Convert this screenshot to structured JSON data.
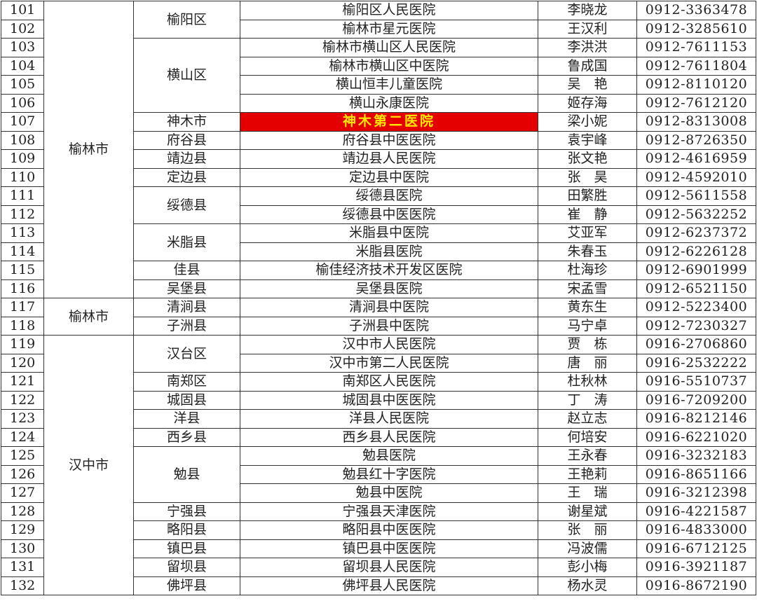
{
  "highlight": {
    "background": "#e40000",
    "text": "#ffe800"
  },
  "cities": [
    {
      "name": "榆林市",
      "rows": 16
    },
    {
      "name": "榆林市",
      "rows": 2
    },
    {
      "name": "汉中市",
      "rows": 14
    }
  ],
  "districts": [
    {
      "name": "榆阳区",
      "rows": 2
    },
    {
      "name": "横山区",
      "rows": 4
    },
    {
      "name": "神木市",
      "rows": 1
    },
    {
      "name": "府谷县",
      "rows": 1
    },
    {
      "name": "靖边县",
      "rows": 1
    },
    {
      "name": "定边县",
      "rows": 1
    },
    {
      "name": "绥德县",
      "rows": 2
    },
    {
      "name": "米脂县",
      "rows": 2
    },
    {
      "name": "佳县",
      "rows": 1
    },
    {
      "name": "吴堡县",
      "rows": 1
    },
    {
      "name": "清涧县",
      "rows": 1
    },
    {
      "name": "子洲县",
      "rows": 1
    },
    {
      "name": "汉台区",
      "rows": 2
    },
    {
      "name": "南郑区",
      "rows": 1
    },
    {
      "name": "城固县",
      "rows": 1
    },
    {
      "name": "洋县",
      "rows": 1
    },
    {
      "name": "西乡县",
      "rows": 1
    },
    {
      "name": "勉县",
      "rows": 3
    },
    {
      "name": "宁强县",
      "rows": 1
    },
    {
      "name": "略阳县",
      "rows": 1
    },
    {
      "name": "镇巴县",
      "rows": 1
    },
    {
      "name": "留坝县",
      "rows": 1
    },
    {
      "name": "佛坪县",
      "rows": 1
    }
  ],
  "rows": [
    {
      "no": "101",
      "hospital": "榆阳区人民医院",
      "contact": "李晓龙",
      "phone": "0912-3363478"
    },
    {
      "no": "102",
      "hospital": "榆林市星元医院",
      "contact": "王汉利",
      "phone": "0912-3285610"
    },
    {
      "no": "103",
      "hospital": "榆林市横山区人民医院",
      "contact": "李洪洪",
      "phone": "0912-7611153"
    },
    {
      "no": "104",
      "hospital": "榆林市横山区中医院",
      "contact": "鲁成国",
      "phone": "0912-7611804"
    },
    {
      "no": "105",
      "hospital": "横山恒丰儿童医院",
      "contact": "吴　艳",
      "phone": "0912-8110120"
    },
    {
      "no": "106",
      "hospital": "横山永康医院",
      "contact": "姬存海",
      "phone": "0912-7612120"
    },
    {
      "no": "107",
      "hospital": "神木第二医院",
      "contact": "梁小妮",
      "phone": "0912-8313008",
      "highlighted": true
    },
    {
      "no": "108",
      "hospital": "府谷县中医医院",
      "contact": "袁宇峰",
      "phone": "0912-8726350"
    },
    {
      "no": "109",
      "hospital": "靖边县人民医院",
      "contact": "张文艳",
      "phone": "0912-4616959"
    },
    {
      "no": "110",
      "hospital": "定边县中医院",
      "contact": "张　昊",
      "phone": "0912-4592010"
    },
    {
      "no": "111",
      "hospital": "绥德县医院",
      "contact": "田繁胜",
      "phone": "0912-5611558"
    },
    {
      "no": "112",
      "hospital": "绥德县中医医院",
      "contact": "崔　静",
      "phone": "0912-5632252"
    },
    {
      "no": "113",
      "hospital": "米脂县中医院",
      "contact": "艾亚军",
      "phone": "0912-6237372"
    },
    {
      "no": "114",
      "hospital": "米脂县医院",
      "contact": "朱春玉",
      "phone": "0912-6226128"
    },
    {
      "no": "115",
      "hospital": "榆佳经济技术开发区医院",
      "contact": "杜海珍",
      "phone": "0912-6901999"
    },
    {
      "no": "116",
      "hospital": "吴堡县医院",
      "contact": "宋孟雪",
      "phone": "0912-6521150"
    },
    {
      "no": "117",
      "hospital": "清涧县中医院",
      "contact": "黄东生",
      "phone": "0912-5223400"
    },
    {
      "no": "118",
      "hospital": "子洲县中医院",
      "contact": "马宁卓",
      "phone": "0912-7230327"
    },
    {
      "no": "119",
      "hospital": "汉中市人民医院",
      "contact": "贾　栋",
      "phone": "0916-2706860"
    },
    {
      "no": "120",
      "hospital": "汉中市第二人民医院",
      "contact": "唐　丽",
      "phone": "0916-2532222"
    },
    {
      "no": "121",
      "hospital": "南郑区人民医院",
      "contact": "杜秋林",
      "phone": "0916-5510737"
    },
    {
      "no": "122",
      "hospital": "城固县中医医院",
      "contact": "丁　涛",
      "phone": "0916-7209200"
    },
    {
      "no": "123",
      "hospital": "洋县人民医院",
      "contact": "赵立志",
      "phone": "0916-8212146"
    },
    {
      "no": "124",
      "hospital": "西乡县人民医院",
      "contact": "何培安",
      "phone": "0916-6221020"
    },
    {
      "no": "125",
      "hospital": "勉县医院",
      "contact": "王永春",
      "phone": "0916-3232183"
    },
    {
      "no": "126",
      "hospital": "勉县红十字医院",
      "contact": "王艳莉",
      "phone": "0916-8651166"
    },
    {
      "no": "127",
      "hospital": "勉县中医院",
      "contact": "王　瑞",
      "phone": "0916-3212398"
    },
    {
      "no": "128",
      "hospital": "宁强县天津医院",
      "contact": "谢星斌",
      "phone": "0916-4221587"
    },
    {
      "no": "129",
      "hospital": "略阳县中医医院",
      "contact": "张　丽",
      "phone": "0916-4833000"
    },
    {
      "no": "130",
      "hospital": "镇巴县中医医院",
      "contact": "冯波儒",
      "phone": "0916-6712125"
    },
    {
      "no": "131",
      "hospital": "留坝县人民医院",
      "contact": "彭小梅",
      "phone": "0916-3921187"
    },
    {
      "no": "132",
      "hospital": "佛坪县人民医院",
      "contact": "杨水灵",
      "phone": "0916-8672190"
    }
  ]
}
